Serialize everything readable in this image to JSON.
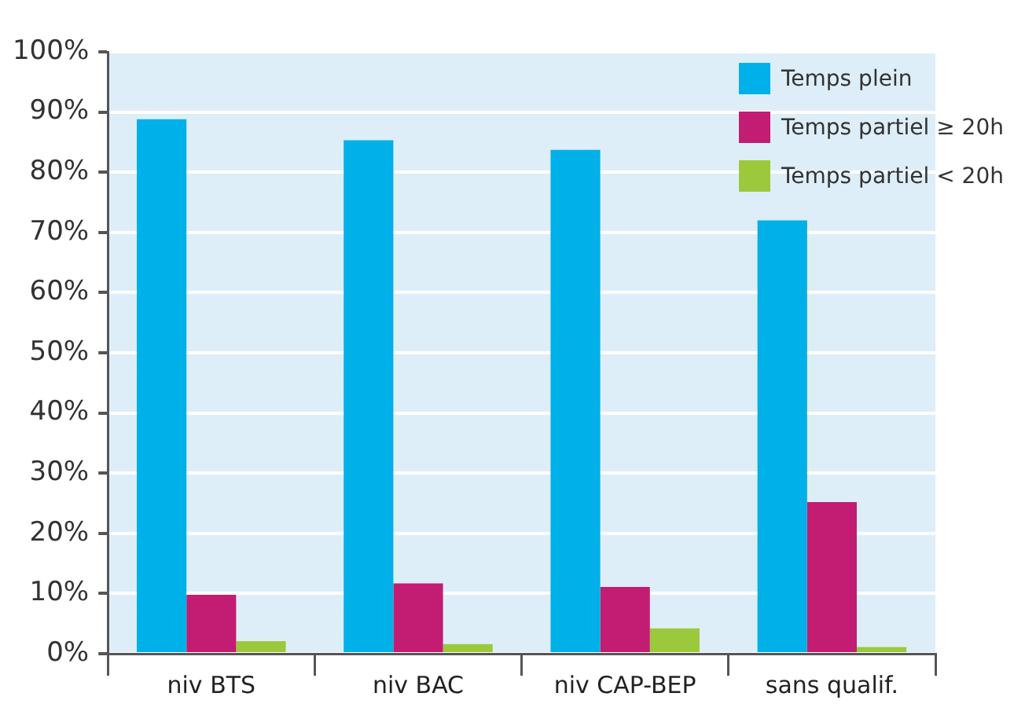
{
  "chart_data": {
    "type": "bar",
    "categories": [
      "niv BTS",
      "niv BAC",
      "niv CAP-BEP",
      "sans qualif."
    ],
    "series": [
      {
        "name": "Temps plein",
        "color": "#00b0e8",
        "values": [
          88.8,
          85.3,
          83.7,
          72
        ]
      },
      {
        "name": "Temps partiel ≥ 20h",
        "color": "#c21d72",
        "values": [
          9.8,
          11.7,
          11.1,
          25.2
        ]
      },
      {
        "name": "Temps partiel < 20h",
        "color": "#9bc93b",
        "values": [
          2.1,
          1.6,
          4.2,
          1.1
        ]
      }
    ],
    "ylim": [
      0,
      100
    ],
    "yticks": [
      {
        "value": 0,
        "label": "0%"
      },
      {
        "value": 10,
        "label": "10%"
      },
      {
        "value": 20,
        "label": "20%"
      },
      {
        "value": 30,
        "label": "30%"
      },
      {
        "value": 40,
        "label": "40%"
      },
      {
        "value": 50,
        "label": "50%"
      },
      {
        "value": 60,
        "label": "60%"
      },
      {
        "value": 70,
        "label": "70%"
      },
      {
        "value": 80,
        "label": "80%"
      },
      {
        "value": 90,
        "label": "90%"
      },
      {
        "value": 100,
        "label": "100%"
      }
    ],
    "grid": "y",
    "legend": "top right"
  }
}
